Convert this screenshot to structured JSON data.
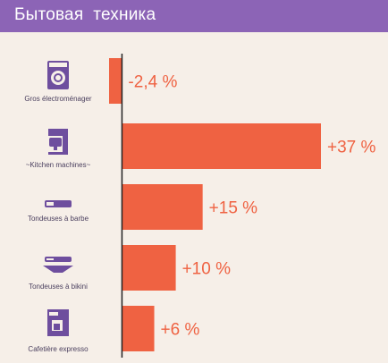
{
  "header": {
    "title": "Бытовая  техника"
  },
  "colors": {
    "header_bg": "#8c64b6",
    "bar": "#ef6242",
    "value_text": "#ef6242",
    "icon": "#6e4e9e",
    "axis": "#222222",
    "background": "#f6efe8"
  },
  "chart_data": {
    "type": "bar",
    "orientation": "horizontal",
    "title": "Бытовая  техника",
    "xlabel": "",
    "ylabel": "",
    "xlim": [
      -2.4,
      37
    ],
    "grid": false,
    "legend": "none",
    "categories": [
      "Gros électroménager",
      "~Kitchen machines~",
      "Tondeuses à barbe",
      "Tondeuses à bikini",
      "Cafetière expresso"
    ],
    "values": [
      -2.4,
      37,
      15,
      10,
      6
    ],
    "value_labels": [
      "-2,4 %",
      "+37 %",
      "+15 %",
      "+10 %",
      "+6 %"
    ],
    "icons": [
      "washing-machine-icon",
      "kitchen-machine-icon",
      "beard-trimmer-icon",
      "bikini-trimmer-icon",
      "espresso-machine-icon"
    ]
  }
}
